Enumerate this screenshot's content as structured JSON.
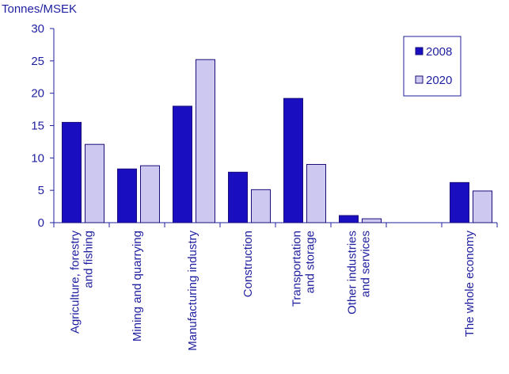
{
  "chart_data": {
    "type": "bar",
    "ylabel": "Tonnes/MSEK",
    "ylim": [
      0,
      30
    ],
    "yticks": [
      0,
      5,
      10,
      15,
      20,
      25,
      30
    ],
    "grid": false,
    "legend_position": "top-right",
    "categories": [
      [
        "Agriculture, forestry",
        "and fishing"
      ],
      [
        "Mining and quarrying"
      ],
      [
        "Manufacturing industry"
      ],
      [
        "Construction"
      ],
      [
        "Transportation",
        "and storage"
      ],
      [
        "Other industries",
        "and services"
      ],
      [
        ""
      ],
      [
        "The whole economy"
      ]
    ],
    "series": [
      {
        "name": "2008",
        "color": "#1a0fc0",
        "values": [
          15.5,
          8.3,
          18.0,
          7.8,
          19.2,
          1.1,
          null,
          6.2
        ]
      },
      {
        "name": "2020",
        "color": "#cdc8ef",
        "values": [
          12.1,
          8.8,
          25.2,
          5.1,
          9.0,
          0.6,
          null,
          4.9
        ]
      }
    ]
  }
}
